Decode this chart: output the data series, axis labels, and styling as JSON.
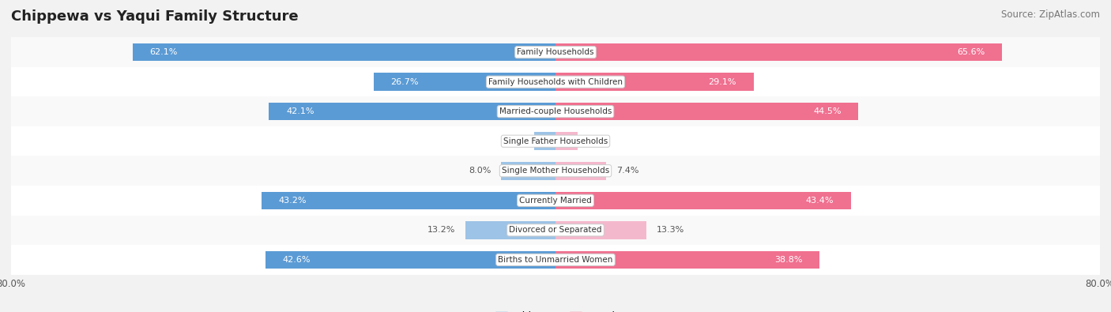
{
  "title": "Chippewa vs Yaqui Family Structure",
  "source": "Source: ZipAtlas.com",
  "categories": [
    "Family Households",
    "Family Households with Children",
    "Married-couple Households",
    "Single Father Households",
    "Single Mother Households",
    "Currently Married",
    "Divorced or Separated",
    "Births to Unmarried Women"
  ],
  "chippewa_values": [
    62.1,
    26.7,
    42.1,
    3.1,
    8.0,
    43.2,
    13.2,
    42.6
  ],
  "yaqui_values": [
    65.6,
    29.1,
    44.5,
    3.2,
    7.4,
    43.4,
    13.3,
    38.8
  ],
  "chippewa_color_strong": "#5b9bd5",
  "chippewa_color_light": "#9dc3e6",
  "yaqui_color_strong": "#f07090",
  "yaqui_color_light": "#f4b8cc",
  "axis_max": 80.0,
  "bg_color": "#f2f2f2",
  "row_colors": [
    "#f9f9f9",
    "#ffffff"
  ],
  "title_fontsize": 13,
  "source_fontsize": 8.5,
  "value_fontsize": 8,
  "cat_fontsize": 7.5,
  "legend_fontsize": 9,
  "bar_height": 0.6,
  "large_threshold": 15
}
